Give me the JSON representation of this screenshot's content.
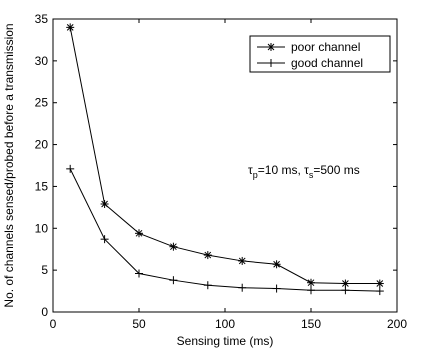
{
  "chart_data": {
    "type": "line",
    "title": "",
    "xlabel": "Sensing time (ms)",
    "ylabel": "No. of channels sensed/probed before a transmission",
    "xlim": [
      0,
      200
    ],
    "ylim": [
      0,
      35
    ],
    "x_ticks": [
      0,
      50,
      100,
      150,
      200
    ],
    "y_ticks": [
      0,
      5,
      10,
      15,
      20,
      25,
      30,
      35
    ],
    "grid": false,
    "legend_position": "top-right",
    "x": [
      10,
      30,
      50,
      70,
      90,
      110,
      130,
      150,
      170,
      190
    ],
    "series": [
      {
        "name": "poor channel",
        "marker": "asterisk",
        "color": "#000000",
        "values": [
          34.0,
          12.9,
          9.4,
          7.8,
          6.8,
          6.1,
          5.7,
          3.5,
          3.4,
          3.4
        ]
      },
      {
        "name": "good channel",
        "marker": "plus",
        "color": "#000000",
        "values": [
          17.1,
          8.7,
          4.6,
          3.8,
          3.2,
          2.9,
          2.8,
          2.6,
          2.6,
          2.5
        ]
      }
    ],
    "annotation": {
      "tau1_symbol": "τ",
      "tau1_sub": "p",
      "tau1_text": "=10 ms, ",
      "tau2_symbol": "τ",
      "tau2_sub": "s",
      "tau2_text": "=500 ms"
    }
  }
}
